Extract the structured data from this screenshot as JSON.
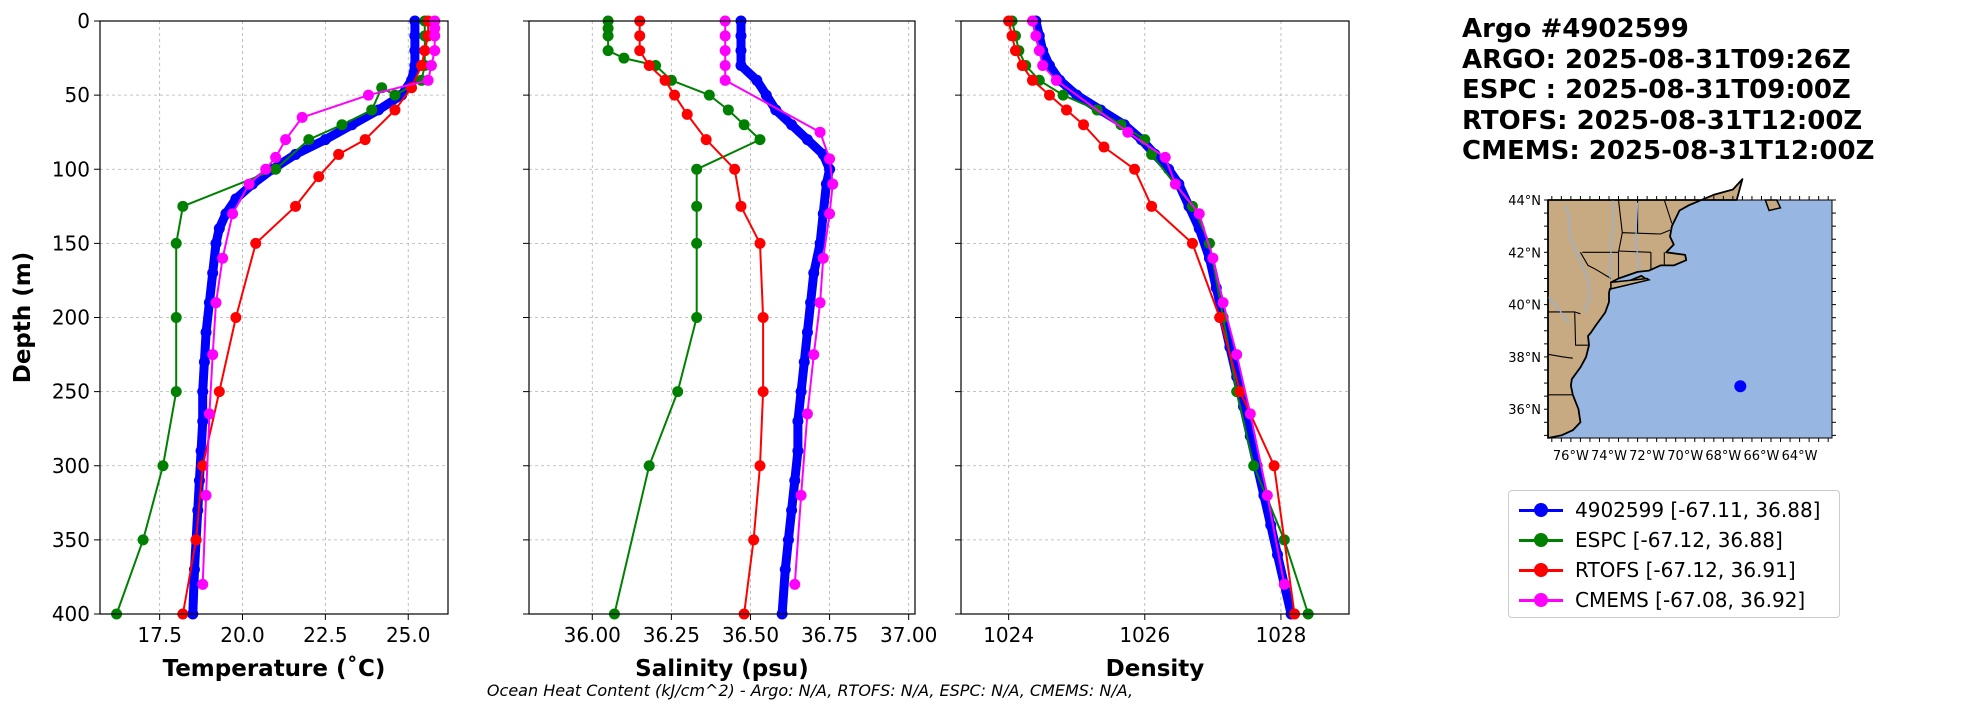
{
  "header": {
    "lines": [
      "Argo #4902599",
      "ARGO: 2025-08-31T09:26Z",
      "ESPC : 2025-08-31T09:00Z",
      "RTOFS: 2025-08-31T12:00Z",
      "CMEMS: 2025-08-31T12:00Z"
    ]
  },
  "footnote": "Ocean Heat Content (kJ/cm^2) - Argo: N/A,  RTOFS: N/A,  ESPC: N/A,  CMEMS: N/A,",
  "legend": [
    {
      "label": "4902599 [-67.11, 36.88]",
      "color": "#0000ff"
    },
    {
      "label": "ESPC [-67.12, 36.88]",
      "color": "#008000"
    },
    {
      "label": "RTOFS [-67.12, 36.91]",
      "color": "#ff0000"
    },
    {
      "label": "CMEMS [-67.08, 36.92]",
      "color": "#ff00ff"
    }
  ],
  "chart_data": [
    {
      "type": "line",
      "xlabel": "Temperature (˚C)",
      "ylabel": "Depth (m)",
      "xlim": [
        15.7,
        26.2
      ],
      "ylim": [
        400,
        0
      ],
      "xticks": [
        17.5,
        20.0,
        22.5,
        25.0
      ],
      "xtick_labels": [
        "17.5",
        "20.0",
        "22.5",
        "25.0"
      ],
      "yticks": [
        0,
        50,
        100,
        150,
        200,
        250,
        300,
        350,
        400
      ],
      "ytick_labels": [
        "0",
        "50",
        "100",
        "150",
        "200",
        "250",
        "300",
        "350",
        "400"
      ],
      "grid": true,
      "series": [
        {
          "name": "4902599",
          "color": "#0000ff",
          "dense": true,
          "x": [
            25.2,
            25.2,
            25.2,
            25.2,
            25.1,
            24.8,
            24.1,
            23.3,
            22.5,
            21.6,
            20.9,
            20.3,
            19.8,
            19.5,
            19.3,
            19.2,
            19.1,
            19.0,
            18.9,
            18.85,
            18.8,
            18.8,
            18.75,
            18.7,
            18.65,
            18.6,
            18.55,
            18.5
          ],
          "depth": [
            0,
            10,
            20,
            30,
            40,
            50,
            60,
            70,
            80,
            90,
            100,
            110,
            120,
            130,
            140,
            150,
            170,
            190,
            210,
            230,
            250,
            270,
            290,
            310,
            330,
            350,
            370,
            400
          ]
        },
        {
          "name": "ESPC",
          "color": "#008000",
          "x": [
            25.5,
            25.5,
            25.5,
            25.5,
            25.4,
            24.6,
            24.2,
            23.9,
            23.0,
            22.0,
            21.0,
            18.2,
            18.0,
            18.0,
            18.0,
            17.6,
            17.0,
            16.2
          ],
          "depth": [
            0,
            10,
            20,
            30,
            40,
            50,
            45,
            60,
            70,
            80,
            100,
            125,
            150,
            200,
            250,
            300,
            350,
            400
          ]
        },
        {
          "name": "RTOFS",
          "color": "#ff0000",
          "x": [
            25.6,
            25.6,
            25.5,
            25.4,
            25.1,
            24.6,
            23.7,
            22.9,
            22.3,
            21.6,
            20.4,
            19.8,
            19.3,
            18.8,
            18.6,
            18.2
          ],
          "depth": [
            0,
            10,
            20,
            30,
            45,
            60,
            80,
            90,
            105,
            125,
            150,
            200,
            250,
            300,
            350,
            400
          ]
        },
        {
          "name": "CMEMS",
          "color": "#ff00ff",
          "x": [
            25.8,
            25.8,
            25.8,
            25.8,
            25.7,
            25.6,
            23.8,
            21.8,
            21.3,
            21.0,
            20.7,
            20.2,
            19.7,
            19.4,
            19.2,
            19.1,
            19.0,
            18.9,
            18.8
          ],
          "depth": [
            0,
            5,
            10,
            20,
            30,
            40,
            50,
            65,
            80,
            92,
            100,
            110,
            130,
            160,
            190,
            225,
            265,
            320,
            380
          ]
        }
      ]
    },
    {
      "type": "line",
      "xlabel": "Salinity (psu)",
      "ylabel": "",
      "xlim": [
        35.8,
        37.02
      ],
      "ylim": [
        400,
        0
      ],
      "xticks": [
        36.0,
        36.25,
        36.5,
        36.75,
        37.0
      ],
      "xtick_labels": [
        "36.00",
        "36.25",
        "36.50",
        "36.75",
        "37.00"
      ],
      "yticks": [
        0,
        50,
        100,
        150,
        200,
        250,
        300,
        350,
        400
      ],
      "grid": true,
      "series": [
        {
          "name": "4902599",
          "color": "#0000ff",
          "dense": true,
          "x": [
            36.47,
            36.47,
            36.47,
            36.47,
            36.52,
            36.55,
            36.58,
            36.63,
            36.68,
            36.73,
            36.75,
            36.74,
            36.73,
            36.72,
            36.7,
            36.69,
            36.68,
            36.67,
            36.66,
            36.65,
            36.65,
            36.64,
            36.63,
            36.62,
            36.61,
            36.6
          ],
          "depth": [
            0,
            10,
            20,
            30,
            40,
            50,
            60,
            70,
            80,
            90,
            100,
            110,
            130,
            150,
            170,
            190,
            210,
            230,
            250,
            270,
            290,
            310,
            330,
            350,
            370,
            400
          ]
        },
        {
          "name": "ESPC",
          "color": "#008000",
          "x": [
            36.05,
            36.05,
            36.05,
            36.05,
            36.1,
            36.2,
            36.25,
            36.37,
            36.43,
            36.48,
            36.53,
            36.33,
            36.33,
            36.33,
            36.33,
            36.27,
            36.18,
            36.07
          ],
          "depth": [
            0,
            5,
            10,
            20,
            25,
            30,
            40,
            50,
            60,
            70,
            80,
            100,
            125,
            150,
            200,
            250,
            300,
            400
          ]
        },
        {
          "name": "RTOFS",
          "color": "#ff0000",
          "x": [
            36.15,
            36.15,
            36.15,
            36.18,
            36.23,
            36.26,
            36.3,
            36.36,
            36.45,
            36.47,
            36.53,
            36.54,
            36.54,
            36.53,
            36.51,
            36.48
          ],
          "depth": [
            0,
            10,
            20,
            30,
            40,
            50,
            63,
            80,
            100,
            125,
            150,
            200,
            250,
            300,
            350,
            400
          ]
        },
        {
          "name": "CMEMS",
          "color": "#ff00ff",
          "x": [
            36.42,
            36.42,
            36.42,
            36.42,
            36.42,
            36.72,
            36.75,
            36.76,
            36.75,
            36.73,
            36.72,
            36.7,
            36.68,
            36.66,
            36.64
          ],
          "depth": [
            0,
            10,
            20,
            30,
            40,
            75,
            93,
            110,
            130,
            160,
            190,
            225,
            265,
            320,
            380
          ]
        }
      ]
    },
    {
      "type": "line",
      "xlabel": "Density",
      "ylabel": "",
      "xlim": [
        1023.3,
        1029.0
      ],
      "ylim": [
        400,
        0
      ],
      "xticks": [
        1024,
        1026,
        1028
      ],
      "xtick_labels": [
        "1024",
        "1026",
        "1028"
      ],
      "yticks": [
        0,
        50,
        100,
        150,
        200,
        250,
        300,
        350,
        400
      ],
      "grid": true,
      "series": [
        {
          "name": "4902599",
          "color": "#0000ff",
          "dense": true,
          "x": [
            1024.4,
            1024.45,
            1024.5,
            1024.6,
            1024.75,
            1025.0,
            1025.35,
            1025.7,
            1025.95,
            1026.15,
            1026.35,
            1026.5,
            1026.65,
            1026.8,
            1026.95,
            1027.05,
            1027.15,
            1027.25,
            1027.35,
            1027.45,
            1027.55,
            1027.65,
            1027.75,
            1027.85,
            1027.95,
            1028.05,
            1028.15
          ],
          "depth": [
            0,
            10,
            20,
            30,
            40,
            50,
            60,
            70,
            80,
            90,
            100,
            110,
            125,
            140,
            160,
            180,
            200,
            220,
            240,
            260,
            280,
            300,
            320,
            340,
            360,
            380,
            400
          ]
        },
        {
          "name": "ESPC",
          "color": "#008000",
          "x": [
            1024.05,
            1024.1,
            1024.15,
            1024.25,
            1024.45,
            1024.8,
            1025.3,
            1025.65,
            1026.0,
            1026.1,
            1026.7,
            1026.95,
            1027.15,
            1027.35,
            1027.6,
            1028.05,
            1028.4
          ],
          "depth": [
            0,
            10,
            20,
            30,
            40,
            50,
            60,
            70,
            80,
            90,
            125,
            150,
            200,
            250,
            300,
            350,
            400
          ]
        },
        {
          "name": "RTOFS",
          "color": "#ff0000",
          "x": [
            1024.0,
            1024.05,
            1024.1,
            1024.2,
            1024.35,
            1024.6,
            1024.85,
            1025.1,
            1025.4,
            1025.85,
            1026.1,
            1026.7,
            1027.1,
            1027.4,
            1027.9,
            1028.2
          ],
          "depth": [
            0,
            10,
            20,
            30,
            40,
            50,
            60,
            70,
            85,
            100,
            125,
            150,
            200,
            250,
            300,
            400
          ]
        },
        {
          "name": "CMEMS",
          "color": "#ff00ff",
          "x": [
            1024.35,
            1024.4,
            1024.45,
            1024.5,
            1024.7,
            1025.75,
            1026.3,
            1026.45,
            1026.8,
            1027.0,
            1027.15,
            1027.35,
            1027.55,
            1027.8,
            1028.05
          ],
          "depth": [
            0,
            10,
            20,
            30,
            40,
            75,
            92,
            110,
            130,
            160,
            190,
            225,
            265,
            320,
            380
          ]
        }
      ]
    }
  ],
  "map": {
    "lat_labels": [
      "44°N",
      "42°N",
      "40°N",
      "38°N",
      "36°N"
    ],
    "lon_labels": [
      "76°W",
      "74°W",
      "72°W",
      "70°W",
      "68°W",
      "66°W",
      "64°W"
    ],
    "land_color": "#c7aa82",
    "ocean_color": "#97b6e1",
    "marker": {
      "lon": -67.11,
      "lat": 36.88,
      "color": "#0000ff"
    }
  }
}
